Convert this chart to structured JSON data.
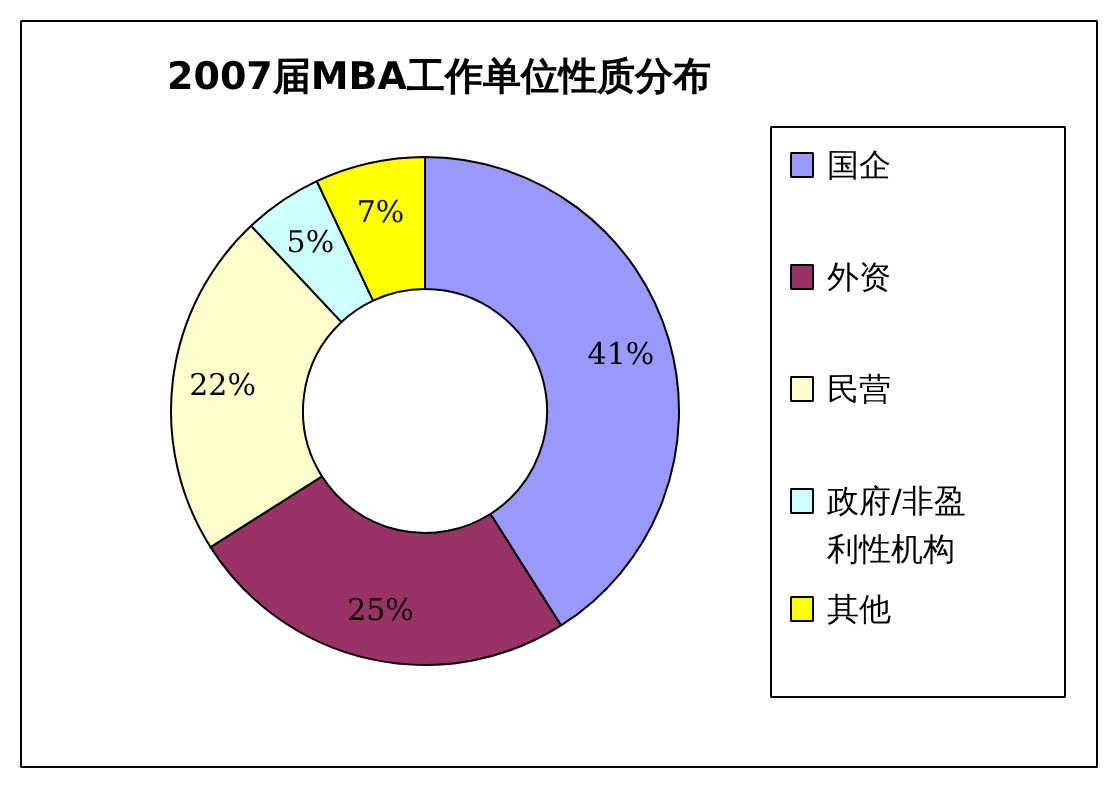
{
  "chart_data": {
    "type": "donut",
    "title": "2007届MBA工作单位性质分布",
    "categories": [
      "国企",
      "外资",
      "民营",
      "政府/非盈利性机构",
      "其他"
    ],
    "values": [
      41,
      25,
      22,
      5,
      7
    ],
    "value_labels": [
      "41%",
      "25%",
      "22%",
      "5%",
      "7%"
    ],
    "colors": [
      "#9999ff",
      "#993366",
      "#ffffcc",
      "#ccffff",
      "#ffff00"
    ],
    "legend": "right"
  }
}
